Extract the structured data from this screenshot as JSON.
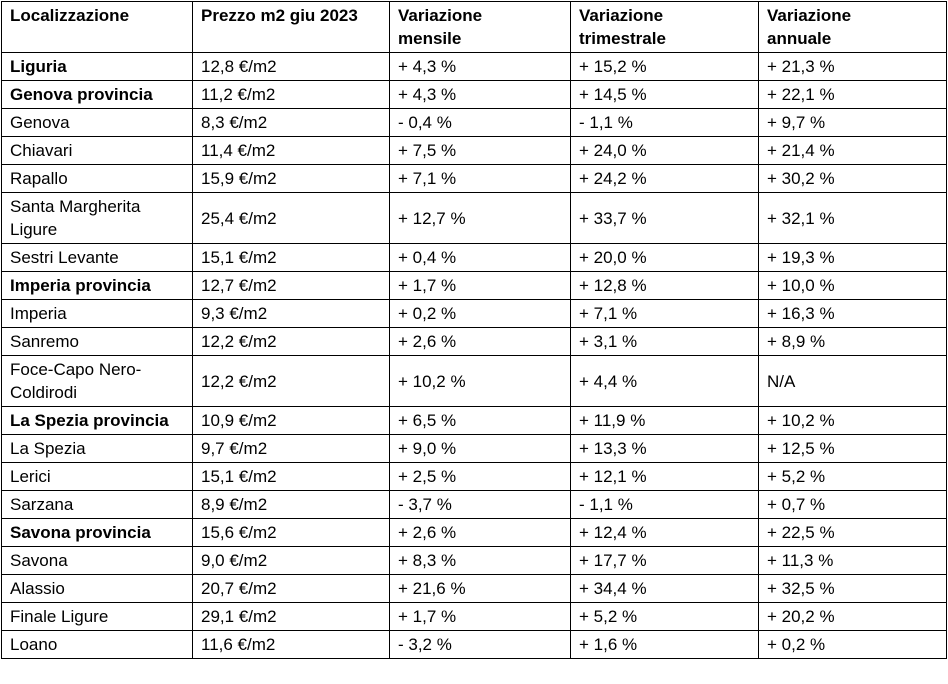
{
  "table": {
    "header": [
      "Localizzazione",
      "Prezzo m2 giu 2023",
      "Variazione mensile",
      "Variazione trimestrale",
      "Variazione annuale"
    ],
    "rows": [
      [
        "Liguria",
        "12,8 €/m2",
        "+ 4,3 %",
        "+ 15,2 %",
        "+ 21,3 %"
      ],
      [
        "Genova provincia",
        "11,2 €/m2",
        "+ 4,3 %",
        "+ 14,5 %",
        "+ 22,1 %"
      ],
      [
        "Genova",
        "8,3 €/m2",
        "- 0,4 %",
        "- 1,1 %",
        "+ 9,7 %"
      ],
      [
        "Chiavari",
        "11,4 €/m2",
        "+ 7,5 %",
        "+ 24,0 %",
        "+ 21,4 %"
      ],
      [
        "Rapallo",
        "15,9 €/m2",
        "+ 7,1 %",
        "+ 24,2 %",
        "+ 30,2 %"
      ],
      [
        "Santa Margherita Ligure",
        "25,4 €/m2",
        "+ 12,7 %",
        "+ 33,7 %",
        "+ 32,1 %"
      ],
      [
        "Sestri Levante",
        "15,1 €/m2",
        "+ 0,4 %",
        "+ 20,0 %",
        "+ 19,3 %"
      ],
      [
        "Imperia provincia",
        "12,7 €/m2",
        "+ 1,7 %",
        "+ 12,8 %",
        "+ 10,0 %"
      ],
      [
        "Imperia",
        "9,3 €/m2",
        "+ 0,2 %",
        "+ 7,1 %",
        "+ 16,3 %"
      ],
      [
        "Sanremo",
        "12,2 €/m2",
        "+ 2,6 %",
        "+ 3,1 %",
        "+ 8,9 %"
      ],
      [
        "Foce-Capo Nero-Coldirodi",
        "12,2 €/m2",
        "+ 10,2 %",
        "+ 4,4 %",
        "N/A"
      ],
      [
        "La Spezia provincia",
        "10,9 €/m2",
        "+ 6,5 %",
        "+ 11,9 %",
        "+ 10,2 %"
      ],
      [
        "La Spezia",
        "9,7 €/m2",
        "+ 9,0 %",
        "+ 13,3 %",
        "+ 12,5 %"
      ],
      [
        "Lerici",
        "15,1 €/m2",
        "+ 2,5 %",
        "+ 12,1 %",
        "+ 5,2 %"
      ],
      [
        "Sarzana",
        "8,9 €/m2",
        "- 3,7 %",
        "- 1,1 %",
        "+ 0,7 %"
      ],
      [
        "Savona provincia",
        "15,6 €/m2",
        "+ 2,6 %",
        "+ 12,4 %",
        "+ 22,5 %"
      ],
      [
        "Savona",
        "9,0 €/m2",
        "+ 8,3 %",
        "+ 17,7 %",
        "+ 11,3 %"
      ],
      [
        "Alassio",
        "20,7 €/m2",
        "+ 21,6 %",
        "+ 34,4 %",
        "+ 32,5 %"
      ],
      [
        "Finale Ligure",
        "29,1 €/m2",
        "+ 1,7 %",
        "+ 5,2 %",
        "+ 20,2 %"
      ],
      [
        "Loano",
        "11,6 €/m2",
        "- 3,2 %",
        "+ 1,6 %",
        "+ 0,2 %"
      ]
    ]
  }
}
